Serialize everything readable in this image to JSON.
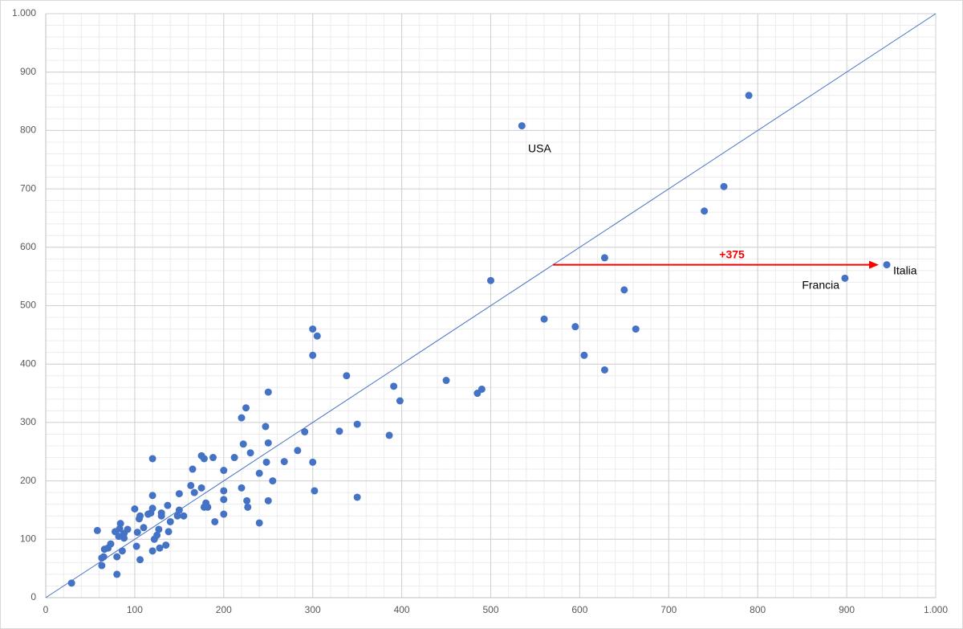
{
  "chart_data": {
    "type": "scatter",
    "xlim": [
      0,
      1000
    ],
    "ylim": [
      0,
      1000
    ],
    "xticks": [
      0,
      100,
      200,
      300,
      400,
      500,
      600,
      700,
      800,
      900,
      {
        "value": 1000,
        "label": "1.000"
      }
    ],
    "yticks": [
      0,
      100,
      200,
      300,
      400,
      500,
      600,
      700,
      800,
      900,
      {
        "value": 1000,
        "label": "1.000"
      }
    ],
    "grid": true,
    "series": [
      {
        "color": "#4472c4",
        "x": [
          29,
          58,
          63,
          63,
          65,
          66,
          70,
          73,
          78,
          80,
          80,
          82,
          84,
          83,
          86,
          88,
          88,
          92,
          100,
          102,
          103,
          105,
          106,
          106,
          110,
          115,
          118,
          120,
          120,
          120,
          120,
          122,
          125,
          127,
          128,
          130,
          130,
          135,
          137,
          138,
          140,
          148,
          150,
          150,
          155,
          163,
          165,
          167,
          175,
          175,
          178,
          178,
          180,
          182,
          188,
          190,
          200,
          200,
          200,
          200,
          212,
          220,
          220,
          222,
          225,
          226,
          227,
          230,
          240,
          240,
          247,
          248,
          250,
          250,
          250,
          255,
          268,
          283,
          291,
          300,
          300,
          300,
          302,
          305,
          330,
          338,
          350,
          350,
          386,
          391,
          398,
          450,
          485,
          490,
          500,
          535,
          560,
          595,
          605,
          628,
          628,
          650,
          663,
          740,
          762,
          790,
          898,
          945
        ],
        "y": [
          25,
          115,
          55,
          68,
          70,
          83,
          85,
          92,
          113,
          40,
          70,
          105,
          127,
          118,
          80,
          110,
          102,
          117,
          152,
          88,
          112,
          135,
          65,
          140,
          120,
          143,
          145,
          238,
          175,
          153,
          80,
          100,
          107,
          117,
          85,
          145,
          140,
          90,
          158,
          113,
          130,
          140,
          150,
          178,
          140,
          192,
          220,
          180,
          243,
          188,
          238,
          155,
          162,
          155,
          240,
          130,
          218,
          183,
          168,
          143,
          240,
          308,
          188,
          263,
          325,
          166,
          155,
          248,
          213,
          128,
          293,
          232,
          352,
          265,
          166,
          200,
          233,
          252,
          284,
          460,
          415,
          232,
          183,
          448,
          285,
          380,
          297,
          172,
          278,
          362,
          337,
          372,
          350,
          357,
          543,
          808,
          477,
          464,
          415,
          390,
          582,
          527,
          460,
          662,
          704,
          860,
          547,
          570
        ]
      }
    ],
    "annotations": [
      {
        "text": "USA"
      },
      {
        "text": "Francia"
      },
      {
        "text": "Italia"
      }
    ],
    "arrow": {
      "value": 375,
      "label": "+375",
      "color": "#ff0000"
    }
  }
}
